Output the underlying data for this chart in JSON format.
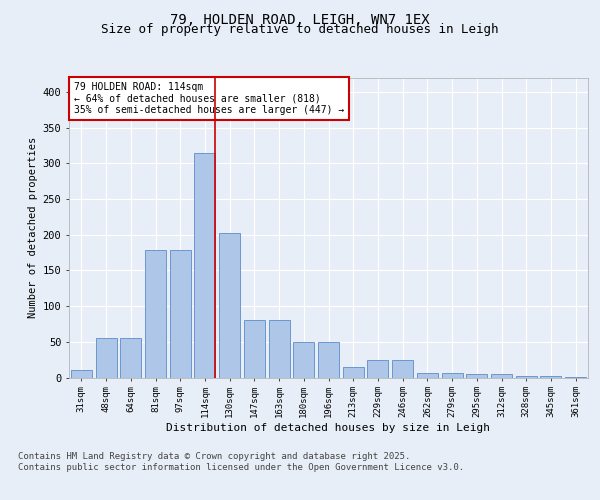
{
  "title": "79, HOLDEN ROAD, LEIGH, WN7 1EX",
  "subtitle": "Size of property relative to detached houses in Leigh",
  "xlabel": "Distribution of detached houses by size in Leigh",
  "ylabel": "Number of detached properties",
  "bin_labels": [
    "31sqm",
    "48sqm",
    "64sqm",
    "81sqm",
    "97sqm",
    "114sqm",
    "130sqm",
    "147sqm",
    "163sqm",
    "180sqm",
    "196sqm",
    "213sqm",
    "229sqm",
    "246sqm",
    "262sqm",
    "279sqm",
    "295sqm",
    "312sqm",
    "328sqm",
    "345sqm",
    "361sqm"
  ],
  "bar_heights": [
    10,
    55,
    55,
    178,
    178,
    315,
    203,
    80,
    80,
    50,
    50,
    15,
    25,
    25,
    7,
    7,
    5,
    5,
    2,
    2,
    1
  ],
  "bar_color": "#aec6e8",
  "bar_edge_color": "#5b8dc8",
  "vline_x": 5,
  "vline_color": "#cc0000",
  "annotation_text": "79 HOLDEN ROAD: 114sqm\n← 64% of detached houses are smaller (818)\n35% of semi-detached houses are larger (447) →",
  "annotation_box_color": "#cc0000",
  "yticks": [
    0,
    50,
    100,
    150,
    200,
    250,
    300,
    350,
    400
  ],
  "ylim": [
    0,
    420
  ],
  "background_color": "#e8eef7",
  "plot_bg_color": "#e8eef7",
  "grid_color": "#ffffff",
  "footer_line1": "Contains HM Land Registry data © Crown copyright and database right 2025.",
  "footer_line2": "Contains public sector information licensed under the Open Government Licence v3.0.",
  "title_fontsize": 10,
  "subtitle_fontsize": 9,
  "footer_fontsize": 6.5
}
